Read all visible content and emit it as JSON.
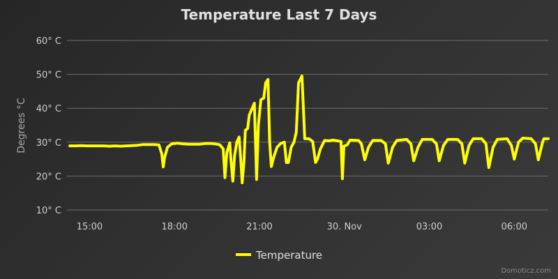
{
  "chart_data": {
    "type": "line",
    "title": "Temperature Last 7 Days",
    "xlabel": "",
    "ylabel": "Degrees °C",
    "ylim": [
      10,
      60
    ],
    "y_ticks": [
      {
        "value": 10,
        "label": "10° C"
      },
      {
        "value": 20,
        "label": "20° C"
      },
      {
        "value": 30,
        "label": "30° C"
      },
      {
        "value": 40,
        "label": "40° C"
      },
      {
        "value": 50,
        "label": "50° C"
      },
      {
        "value": 60,
        "label": "60° C"
      }
    ],
    "x_unit": "hours (29 Nov 12:00 = 0)",
    "xlim": [
      2.2,
      19.2
    ],
    "x_ticks": [
      {
        "value": 3,
        "label": "15:00"
      },
      {
        "value": 6,
        "label": "18:00"
      },
      {
        "value": 9,
        "label": "21:00"
      },
      {
        "value": 12,
        "label": "30. Nov"
      },
      {
        "value": 15,
        "label": "03:00"
      },
      {
        "value": 18,
        "label": "06:00"
      }
    ],
    "grid": true,
    "legend_position": "bottom-center",
    "series": [
      {
        "name": "Temperature",
        "color": "#ffff00",
        "points": [
          [
            2.3,
            28.9
          ],
          [
            2.5,
            28.9
          ],
          [
            2.7,
            29.0
          ],
          [
            2.9,
            28.9
          ],
          [
            3.1,
            28.9
          ],
          [
            3.3,
            28.9
          ],
          [
            3.5,
            28.9
          ],
          [
            3.7,
            28.8
          ],
          [
            3.9,
            28.9
          ],
          [
            4.1,
            28.8
          ],
          [
            4.3,
            28.9
          ],
          [
            4.5,
            29.0
          ],
          [
            4.7,
            29.1
          ],
          [
            4.9,
            29.3
          ],
          [
            5.1,
            29.3
          ],
          [
            5.3,
            29.3
          ],
          [
            5.45,
            29.2
          ],
          [
            5.55,
            26.5
          ],
          [
            5.6,
            22.7
          ],
          [
            5.65,
            25.5
          ],
          [
            5.75,
            28.5
          ],
          [
            5.9,
            29.5
          ],
          [
            6.1,
            29.7
          ],
          [
            6.3,
            29.5
          ],
          [
            6.5,
            29.4
          ],
          [
            6.7,
            29.4
          ],
          [
            6.9,
            29.4
          ],
          [
            7.1,
            29.6
          ],
          [
            7.3,
            29.6
          ],
          [
            7.5,
            29.4
          ],
          [
            7.6,
            29.2
          ],
          [
            7.72,
            28.0
          ],
          [
            7.78,
            19.5
          ],
          [
            7.85,
            27.0
          ],
          [
            7.95,
            29.8
          ],
          [
            8.0,
            24.0
          ],
          [
            8.06,
            18.5
          ],
          [
            8.12,
            26.0
          ],
          [
            8.2,
            30.0
          ],
          [
            8.28,
            31.5
          ],
          [
            8.34,
            25.0
          ],
          [
            8.39,
            18.0
          ],
          [
            8.45,
            24.0
          ],
          [
            8.5,
            33.5
          ],
          [
            8.58,
            34.0
          ],
          [
            8.64,
            38.0
          ],
          [
            8.72,
            39.5
          ],
          [
            8.82,
            41.5
          ],
          [
            8.9,
            19.0
          ],
          [
            8.96,
            35.0
          ],
          [
            9.05,
            42.5
          ],
          [
            9.15,
            43.0
          ],
          [
            9.22,
            47.5
          ],
          [
            9.3,
            48.5
          ],
          [
            9.36,
            30.0
          ],
          [
            9.42,
            22.8
          ],
          [
            9.5,
            25.5
          ],
          [
            9.62,
            28.5
          ],
          [
            9.75,
            29.6
          ],
          [
            9.88,
            30.0
          ],
          [
            9.95,
            24.0
          ],
          [
            10.02,
            24.0
          ],
          [
            10.12,
            28.5
          ],
          [
            10.22,
            30.0
          ],
          [
            10.3,
            33.0
          ],
          [
            10.38,
            47.5
          ],
          [
            10.5,
            49.5
          ],
          [
            10.6,
            31.0
          ],
          [
            10.75,
            31.0
          ],
          [
            10.88,
            30.2
          ],
          [
            10.98,
            24.0
          ],
          [
            11.05,
            25.0
          ],
          [
            11.15,
            28.0
          ],
          [
            11.3,
            30.5
          ],
          [
            11.45,
            30.4
          ],
          [
            11.6,
            30.6
          ],
          [
            11.75,
            30.4
          ],
          [
            11.88,
            30.2
          ],
          [
            11.93,
            19.2
          ],
          [
            11.98,
            28.8
          ],
          [
            12.1,
            29.2
          ],
          [
            12.2,
            30.6
          ],
          [
            12.5,
            30.5
          ],
          [
            12.6,
            29.5
          ],
          [
            12.72,
            24.8
          ],
          [
            12.85,
            28.5
          ],
          [
            13.0,
            30.5
          ],
          [
            13.3,
            30.5
          ],
          [
            13.45,
            29.5
          ],
          [
            13.55,
            23.8
          ],
          [
            13.7,
            28.5
          ],
          [
            13.85,
            30.5
          ],
          [
            14.2,
            30.8
          ],
          [
            14.35,
            29.5
          ],
          [
            14.45,
            24.5
          ],
          [
            14.6,
            28.5
          ],
          [
            14.75,
            30.8
          ],
          [
            15.1,
            30.8
          ],
          [
            15.25,
            29.5
          ],
          [
            15.35,
            24.5
          ],
          [
            15.5,
            29.0
          ],
          [
            15.65,
            30.8
          ],
          [
            16.0,
            30.8
          ],
          [
            16.15,
            29.5
          ],
          [
            16.25,
            23.8
          ],
          [
            16.4,
            29.0
          ],
          [
            16.55,
            31.0
          ],
          [
            16.85,
            31.0
          ],
          [
            17.0,
            29.5
          ],
          [
            17.1,
            22.5
          ],
          [
            17.25,
            28.5
          ],
          [
            17.4,
            30.8
          ],
          [
            17.75,
            31.0
          ],
          [
            17.9,
            29.0
          ],
          [
            18.0,
            25.0
          ],
          [
            18.15,
            30.0
          ],
          [
            18.3,
            31.2
          ],
          [
            18.6,
            31.0
          ],
          [
            18.75,
            29.5
          ],
          [
            18.85,
            24.8
          ],
          [
            19.0,
            30.0
          ],
          [
            19.05,
            31.0
          ],
          [
            19.2,
            31.0
          ]
        ]
      }
    ],
    "credit": "Domoticz.com"
  }
}
